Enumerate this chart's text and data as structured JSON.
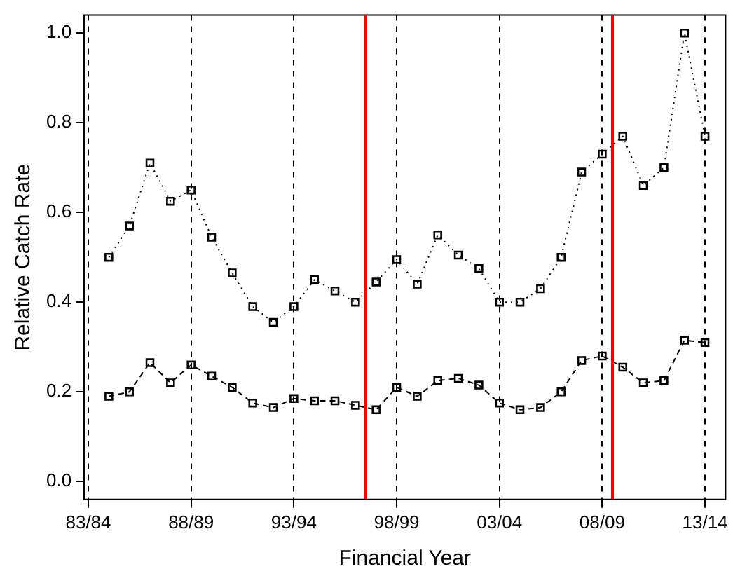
{
  "chart_data": {
    "type": "line",
    "xlabel": "Financial Year",
    "ylabel": "Relative Catch Rate",
    "categories": [
      "83/84",
      null,
      null,
      null,
      null,
      "88/89",
      null,
      null,
      null,
      null,
      "93/94",
      null,
      null,
      null,
      null,
      "98/99",
      null,
      null,
      null,
      null,
      "03/04",
      null,
      null,
      null,
      null,
      "08/09",
      null,
      null,
      null,
      null,
      "13/14"
    ],
    "series": [
      {
        "color": "#000000",
        "line_style": "dotted",
        "values": [
          null,
          0.5,
          0.57,
          0.71,
          0.625,
          0.65,
          0.545,
          0.465,
          0.39,
          0.355,
          0.39,
          0.45,
          0.425,
          0.4,
          0.445,
          0.495,
          0.44,
          0.55,
          0.505,
          0.475,
          0.4,
          0.4,
          0.43,
          0.5,
          0.69,
          0.73,
          0.77,
          0.66,
          0.7,
          1.0,
          0.77
        ]
      },
      {
        "color": "#000000",
        "line_style": "dashed",
        "values": [
          null,
          0.19,
          0.2,
          0.265,
          0.22,
          0.26,
          0.235,
          0.21,
          0.175,
          0.165,
          0.185,
          0.18,
          0.18,
          0.17,
          0.16,
          0.21,
          0.19,
          0.225,
          0.23,
          0.215,
          0.175,
          0.16,
          0.165,
          0.2,
          0.27,
          0.28,
          0.255,
          0.22,
          0.225,
          0.315,
          0.31
        ]
      }
    ],
    "ylim": [
      -0.04,
      1.04
    ],
    "yticks": [
      {
        "value": 0,
        "label": "0.0"
      },
      0.2,
      0.4,
      0.6,
      0.8,
      {
        "value": 1,
        "label": "1.0"
      }
    ],
    "grid": "x",
    "marker": "square",
    "legend": false
  }
}
